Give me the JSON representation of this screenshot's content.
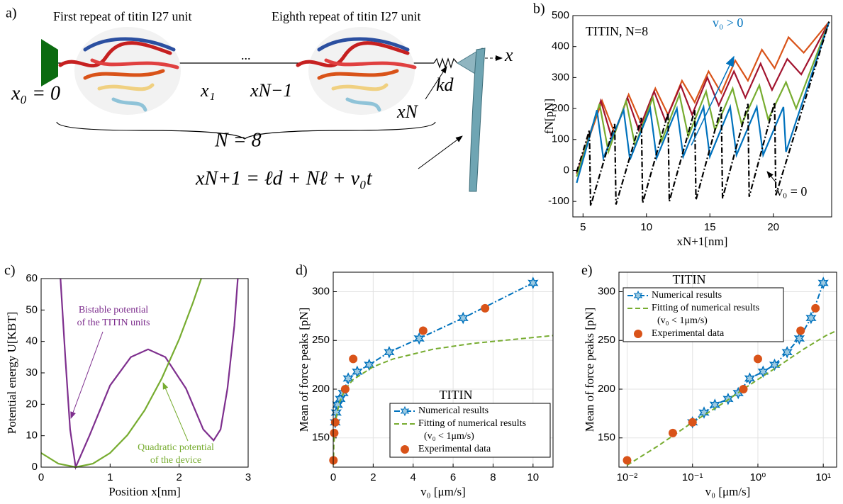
{
  "panel_labels": [
    "a)",
    "b)",
    "c)",
    "d)",
    "e)"
  ],
  "diagram": {
    "first_label": "First repeat of titin I27 unit",
    "eighth_label": "Eighth repeat of titin I27 unit",
    "ellipsis": "...",
    "x0": "x₀ = 0",
    "x1": "x₁",
    "xN_minus_1": "xN−1",
    "xN": "xN",
    "kd": "kd",
    "x_axis": "x",
    "N": "N = 8",
    "equation": "xN+1 = ℓd + Nℓ + v₀t"
  },
  "chart_data": [
    {
      "type": "line",
      "xlabel": "xN+1[nm]",
      "ylabel": "fN[pN]",
      "xlim": [
        4.2,
        24.6
      ],
      "ylim": [
        -150,
        500
      ],
      "xticks": [
        5,
        10,
        15,
        20
      ],
      "yticks": [
        -100,
        0,
        100,
        200,
        300,
        400,
        500
      ],
      "grid": false,
      "annotations": [
        {
          "text": "TITIN, N=8",
          "color": "#000000"
        },
        {
          "text": "v₀ > 0",
          "color": "#0072bd"
        },
        {
          "text": "v₀ = 0",
          "color": "#000000"
        }
      ],
      "series": [
        {
          "color": "#d95319",
          "x": [
            4.5,
            6.5,
            7.5,
            8.6,
            9.6,
            10.7,
            11.7,
            12.8,
            13.8,
            14.9,
            15.9,
            17.0,
            18.0,
            19.1,
            20.1,
            21.2,
            22.4,
            24.4
          ],
          "values": [
            -10,
            225,
            120,
            245,
            150,
            265,
            180,
            290,
            220,
            320,
            250,
            355,
            290,
            390,
            330,
            430,
            380,
            480
          ]
        },
        {
          "color": "#a2142f",
          "x": [
            4.5,
            6.4,
            7.3,
            8.5,
            9.4,
            10.6,
            11.5,
            12.7,
            13.6,
            14.8,
            15.7,
            16.9,
            17.8,
            19.0,
            19.9,
            21.1,
            22.2,
            24.4
          ],
          "values": [
            -10,
            225,
            100,
            235,
            130,
            255,
            160,
            275,
            180,
            300,
            210,
            320,
            235,
            345,
            260,
            360,
            310,
            480
          ]
        },
        {
          "color": "#77ac30",
          "x": [
            4.5,
            6.3,
            7.0,
            8.4,
            9.1,
            10.5,
            11.2,
            12.6,
            13.3,
            14.7,
            15.4,
            16.8,
            17.5,
            18.9,
            19.6,
            21.0,
            21.8,
            24.4
          ],
          "values": [
            -20,
            215,
            60,
            225,
            80,
            235,
            95,
            245,
            110,
            255,
            130,
            265,
            150,
            275,
            165,
            285,
            200,
            480
          ]
        },
        {
          "color": "#0072bd",
          "x": [
            4.5,
            6.1,
            6.6,
            8.2,
            8.7,
            10.3,
            10.8,
            12.4,
            12.9,
            14.5,
            15.0,
            16.6,
            17.1,
            18.7,
            19.2,
            20.8,
            21.0,
            24.4
          ],
          "values": [
            -40,
            195,
            40,
            195,
            35,
            200,
            40,
            200,
            45,
            205,
            45,
            205,
            50,
            205,
            50,
            205,
            60,
            480
          ]
        },
        {
          "color": "#000000",
          "dash": "dashdot",
          "x": [
            4.5,
            5.5,
            5.6,
            7.5,
            7.6,
            9.6,
            9.7,
            11.7,
            11.8,
            13.8,
            13.9,
            15.9,
            16.0,
            18.0,
            18.1,
            20.1,
            20.2,
            24.4
          ],
          "values": [
            -5,
            130,
            -115,
            150,
            -110,
            170,
            -105,
            185,
            -100,
            195,
            -95,
            205,
            -90,
            215,
            -85,
            220,
            -80,
            480
          ]
        }
      ]
    },
    {
      "type": "line",
      "xlabel": "Position x[nm]",
      "ylabel": "Potential energy U[KBT]",
      "xlim": [
        0,
        3
      ],
      "ylim": [
        0,
        60
      ],
      "xticks": [
        0,
        1,
        2,
        3
      ],
      "yticks": [
        0,
        10,
        20,
        30,
        40,
        50,
        60
      ],
      "grid": false,
      "annotations": [
        {
          "text": "Bistable potential",
          "color": "#7e2f8e"
        },
        {
          "text": "of the TITIN units",
          "color": "#7e2f8e"
        },
        {
          "text": "Quadratic potential",
          "color": "#77ac30"
        },
        {
          "text": "of the device",
          "color": "#77ac30"
        }
      ],
      "series": [
        {
          "color": "#7e2f8e",
          "x": [
            0.28,
            0.35,
            0.42,
            0.5,
            0.7,
            1.0,
            1.3,
            1.55,
            1.8,
            2.1,
            2.35,
            2.5,
            2.6,
            2.7,
            2.8,
            2.85
          ],
          "values": [
            60,
            35,
            12,
            0,
            10,
            26,
            35,
            37.5,
            35,
            25,
            12,
            8.5,
            12,
            25,
            45,
            60
          ]
        },
        {
          "color": "#77ac30",
          "x": [
            0,
            0.25,
            0.5,
            0.75,
            1.0,
            1.25,
            1.5,
            1.75,
            2.0,
            2.2,
            2.32
          ],
          "values": [
            4.5,
            1.1,
            0,
            1.1,
            4.5,
            10.2,
            18.1,
            28.3,
            40.7,
            52.3,
            60
          ]
        }
      ]
    },
    {
      "type": "line",
      "xlabel": "v₀ [μm/s]",
      "ylabel": "Mean of force peaks [pN]",
      "xlim": [
        0,
        11
      ],
      "ylim": [
        120,
        320
      ],
      "xticks": [
        0,
        2,
        4,
        6,
        8,
        10
      ],
      "yticks": [
        150,
        200,
        250,
        300
      ],
      "grid": true,
      "legend": "lower right",
      "legend_title": "TITIN",
      "series": [
        {
          "name": [
            "Numerical results"
          ],
          "color": "#0072bd",
          "dash": "dashdot",
          "marker": "star",
          "x": [
            0.1,
            0.15,
            0.22,
            0.35,
            0.5,
            0.75,
            1.2,
            1.8,
            2.8,
            4.3,
            6.5,
            10
          ],
          "values": [
            166,
            176,
            184,
            190,
            196,
            211,
            218,
            225,
            238,
            252,
            273,
            309
          ]
        },
        {
          "name": [
            "Fitting of numerical results",
            "(v₀ < 1μm/s)"
          ],
          "color": "#77ac30",
          "dash": "dash",
          "x": [
            0.01,
            0.03,
            0.1,
            0.3,
            0.6,
            1,
            2,
            3,
            5,
            7,
            11
          ],
          "values": [
            122,
            142,
            166,
            186,
            200,
            210,
            223,
            231,
            241,
            247,
            255
          ]
        },
        {
          "name": [
            "Experimental data"
          ],
          "color": "#d95319",
          "marker": "circle",
          "noline": true,
          "x": [
            0.01,
            0.05,
            0.1,
            0.6,
            1.0,
            4.5,
            7.6
          ],
          "values": [
            127,
            155,
            166,
            200,
            231,
            260,
            283
          ]
        }
      ]
    },
    {
      "type": "line",
      "xlabel": "v₀ [μm/s]",
      "ylabel": "Mean of force peaks [pN]",
      "xlog": true,
      "xlim": [
        0.0075,
        16
      ],
      "ylim": [
        120,
        320
      ],
      "xticks": [
        {
          "value": 0.01,
          "label": "10⁻²"
        },
        {
          "value": 0.1,
          "label": "10⁻¹"
        },
        {
          "value": 1,
          "label": "10⁰"
        },
        {
          "value": 10,
          "label": "10¹"
        }
      ],
      "yticks": [
        150,
        200,
        250,
        300
      ],
      "grid": true,
      "legend": "upper left",
      "legend_title": "TITIN",
      "series": [
        {
          "name": [
            "Numerical results"
          ],
          "color": "#0072bd",
          "dash": "dashdot",
          "marker": "star",
          "x": [
            0.1,
            0.15,
            0.22,
            0.35,
            0.5,
            0.75,
            1.2,
            1.8,
            2.8,
            4.3,
            6.5,
            10
          ],
          "values": [
            166,
            176,
            184,
            190,
            196,
            211,
            218,
            225,
            238,
            252,
            273,
            309
          ]
        },
        {
          "name": [
            "Fitting of numerical results",
            "(v₀ < 1μm/s)"
          ],
          "color": "#77ac30",
          "dash": "dash",
          "x": [
            0.01,
            0.03,
            0.1,
            0.3,
            0.6,
            1,
            2,
            3,
            5,
            7,
            11,
            16
          ],
          "values": [
            122,
            142,
            166,
            186,
            200,
            210,
            223,
            231,
            241,
            247,
            255,
            260
          ]
        },
        {
          "name": [
            "Experimental data"
          ],
          "color": "#d95319",
          "marker": "circle",
          "noline": true,
          "x": [
            0.01,
            0.05,
            0.1,
            0.6,
            1.0,
            4.5,
            7.6
          ],
          "values": [
            127,
            155,
            166,
            200,
            231,
            260,
            283
          ]
        }
      ]
    }
  ]
}
